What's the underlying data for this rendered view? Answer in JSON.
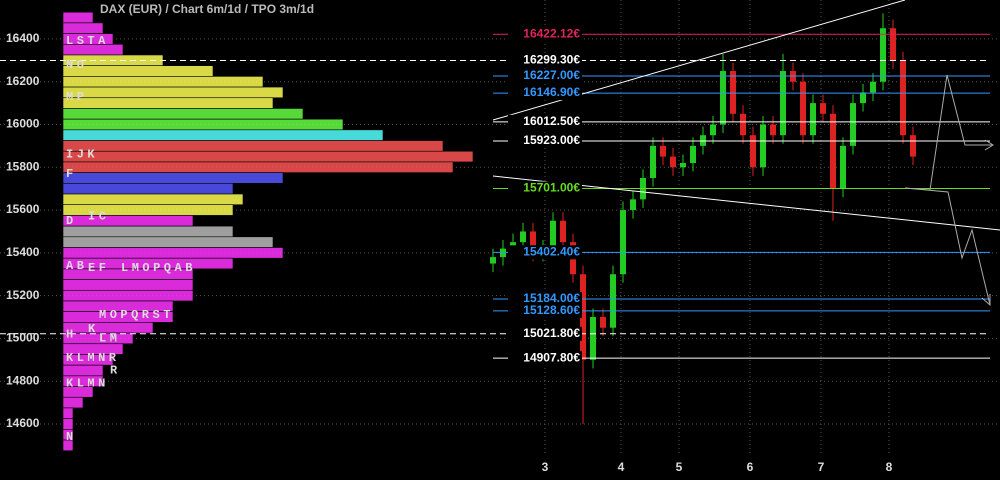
{
  "chart_data": {
    "type": "candlestick",
    "title": "DAX (EUR) /  Chart 6m/1d / TPO 3m/1d",
    "ylim": [
      14455,
      16582
    ],
    "yticks": [
      14600,
      14800,
      15000,
      15200,
      15400,
      15600,
      15800,
      16000,
      16200,
      16400
    ],
    "xlim": [
      -0.5,
      49.7
    ],
    "xticks": [
      {
        "value": 5.2,
        "label": "3"
      },
      {
        "value": 12.8,
        "label": "4"
      },
      {
        "value": 18.6,
        "label": "5"
      },
      {
        "value": 25.7,
        "label": "6"
      },
      {
        "value": 32.8,
        "label": "7"
      },
      {
        "value": 39.6,
        "label": "8"
      }
    ],
    "grid": true,
    "up_color": "#22cc22",
    "down_color": "#dd2222",
    "x": [
      0,
      1,
      2,
      3,
      4,
      5,
      6,
      7,
      8,
      9,
      10,
      11,
      12,
      13,
      14,
      15,
      16,
      17,
      18,
      19,
      20,
      21,
      22,
      23,
      24,
      25,
      26,
      27,
      28,
      29,
      30,
      31,
      32,
      33,
      34,
      35,
      36,
      37,
      38,
      39,
      40,
      41,
      42
    ],
    "open": [
      15350,
      15380,
      15420,
      15450,
      15500,
      15400,
      15420,
      15550,
      15450,
      15300,
      14900,
      15100,
      15050,
      15300,
      15600,
      15650,
      15750,
      15900,
      15850,
      15800,
      15820,
      15900,
      15950,
      16000,
      16250,
      16050,
      15950,
      15800,
      16000,
      15950,
      16250,
      16200,
      15950,
      16100,
      16050,
      15700,
      15900,
      16100,
      16150,
      16200,
      16450,
      16300,
      15950
    ],
    "high": [
      15420,
      15460,
      15490,
      15540,
      15540,
      15460,
      15590,
      15590,
      15490,
      15340,
      15140,
      15140,
      15340,
      15640,
      15690,
      15790,
      15940,
      15940,
      15890,
      15860,
      15940,
      15990,
      16040,
      16330,
      16290,
      16090,
      15990,
      16040,
      16040,
      16330,
      16290,
      16240,
      16140,
      16140,
      16090,
      15940,
      16140,
      16190,
      16240,
      16520,
      16490,
      16340,
      15990
    ],
    "low": [
      15310,
      15340,
      15380,
      15410,
      15360,
      15360,
      15380,
      15410,
      15260,
      14600,
      14860,
      15010,
      15010,
      15260,
      15560,
      15610,
      15710,
      15810,
      15760,
      15760,
      15780,
      15860,
      15910,
      15960,
      16010,
      15910,
      15760,
      15760,
      15910,
      15910,
      16160,
      15910,
      15910,
      16010,
      15550,
      15660,
      15860,
      16060,
      16110,
      16160,
      16260,
      15910,
      15810
    ],
    "close": [
      15380,
      15420,
      15450,
      15500,
      15400,
      15420,
      15550,
      15450,
      15300,
      14900,
      15100,
      15050,
      15300,
      15600,
      15650,
      15750,
      15900,
      15850,
      15800,
      15820,
      15900,
      15950,
      16000,
      16250,
      16050,
      15950,
      15800,
      16000,
      15950,
      16250,
      16200,
      15950,
      16100,
      16050,
      15700,
      15900,
      16100,
      16150,
      16200,
      16450,
      16300,
      15950,
      15850
    ],
    "levels": [
      {
        "value": 16422.12,
        "label": "16422.12€",
        "color": "#e0245e",
        "dashed": false
      },
      {
        "value": 16299.3,
        "label": "16299.30€",
        "color": "#ffffff",
        "dashed": true
      },
      {
        "value": 16227.0,
        "label": "16227.00€",
        "color": "#3399ff",
        "dashed": false
      },
      {
        "value": 16146.9,
        "label": "16146.90€",
        "color": "#3399ff",
        "dashed": false
      },
      {
        "value": 16012.5,
        "label": "16012.50€",
        "color": "#ffffff",
        "dashed": false
      },
      {
        "value": 15923.0,
        "label": "15923.00€",
        "color": "#ffffff",
        "dashed": false
      },
      {
        "value": 15701.0,
        "label": "15701.00€",
        "color": "#66dd22",
        "dashed": false
      },
      {
        "value": 15402.4,
        "label": "15402.40€",
        "color": "#3399ff",
        "dashed": false
      },
      {
        "value": 15184.0,
        "label": "15184.00€",
        "color": "#3399ff",
        "dashed": false
      },
      {
        "value": 15128.6,
        "label": "15128.60€",
        "color": "#3399ff",
        "dashed": false
      },
      {
        "value": 15021.8,
        "label": "15021.80€",
        "color": "#ffffff",
        "dashed": true
      },
      {
        "value": 14907.8,
        "label": "14907.80€",
        "color": "#ffffff",
        "dashed": false
      }
    ],
    "profile": {
      "prices": [
        16500,
        16450,
        16400,
        16350,
        16300,
        16250,
        16200,
        16150,
        16100,
        16050,
        16000,
        15950,
        15900,
        15850,
        15800,
        15750,
        15700,
        15650,
        15600,
        15550,
        15500,
        15450,
        15400,
        15350,
        15300,
        15250,
        15200,
        15150,
        15100,
        15050,
        15000,
        14950,
        14900,
        14850,
        14800,
        14750,
        14700,
        14650,
        14600,
        14550,
        14500
      ],
      "counts": [
        3,
        4,
        5,
        6,
        10,
        15,
        20,
        22,
        21,
        24,
        28,
        32,
        38,
        41,
        39,
        22,
        17,
        18,
        17,
        13,
        17,
        21,
        22,
        17,
        13,
        13,
        13,
        11,
        11,
        9,
        7,
        6,
        5,
        4,
        4,
        3,
        2,
        1,
        1,
        1,
        1
      ],
      "colors": [
        "#ff33ff",
        "#ff33ff",
        "#ff33ff",
        "#ff33ff",
        "#ffff55",
        "#ffff55",
        "#ffff55",
        "#ffff55",
        "#ffff55",
        "#66ff44",
        "#66ff44",
        "#55ffff",
        "#ff5555",
        "#ff5555",
        "#ff5555",
        "#5555ff",
        "#5555ff",
        "#ffff55",
        "#ffff55",
        "#ff33ff",
        "#bbbbbb",
        "#bbbbbb",
        "#ff33ff",
        "#ff33ff",
        "#ff33ff",
        "#ff33ff",
        "#ff33ff",
        "#ff33ff",
        "#ff33ff",
        "#ff33ff",
        "#ff33ff",
        "#ff33ff",
        "#ff33ff",
        "#ff33ff",
        "#ff33ff",
        "#ff33ff",
        "#ff33ff",
        "#ff33ff",
        "#ff33ff",
        "#ff33ff",
        "#ff33ff"
      ],
      "letters": [
        {
          "price": 16390,
          "col": 0,
          "text": "LSTA"
        },
        {
          "price": 16280,
          "col": 0,
          "text": "NO"
        },
        {
          "price": 16130,
          "col": 0,
          "text": "MP"
        },
        {
          "price": 15860,
          "col": 0,
          "text": "IJK"
        },
        {
          "price": 15770,
          "col": 0,
          "text": "F"
        },
        {
          "price": 15550,
          "col": 0,
          "text": "D"
        },
        {
          "price": 15570,
          "col": 2,
          "text": "IC"
        },
        {
          "price": 15340,
          "col": 0,
          "text": "AB"
        },
        {
          "price": 15330,
          "col": 2,
          "text": "EF"
        },
        {
          "price": 15330,
          "col": 5,
          "text": "LMOPQAB"
        },
        {
          "price": 15110,
          "col": 3,
          "text": "MOPQRST"
        },
        {
          "price": 15020,
          "col": 0,
          "text": "H"
        },
        {
          "price": 15045,
          "col": 2,
          "text": "K"
        },
        {
          "price": 15000,
          "col": 3,
          "text": "LM"
        },
        {
          "price": 14910,
          "col": 0,
          "text": "KLMNR"
        },
        {
          "price": 14850,
          "col": 4,
          "text": "R"
        },
        {
          "price": 14790,
          "col": 0,
          "text": "KLMN"
        },
        {
          "price": 14540,
          "col": 0,
          "text": "N"
        }
      ]
    }
  }
}
